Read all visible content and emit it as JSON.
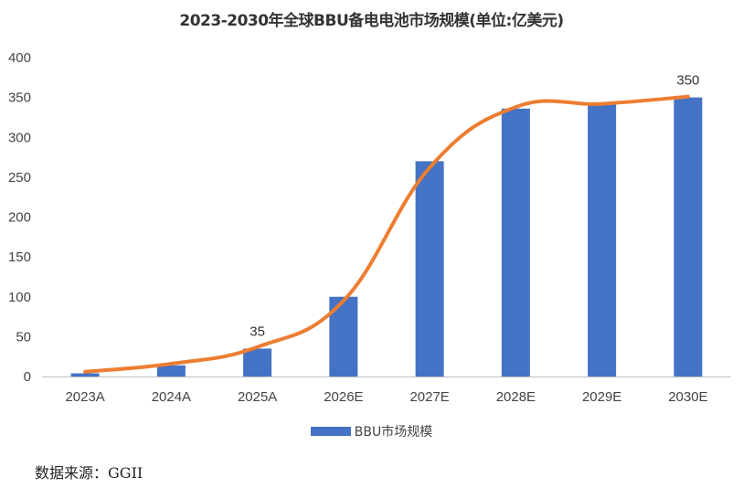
{
  "chart_data": {
    "type": "bar",
    "title": "2023-2030年全球BBU备电电池市场规模(单位:亿美元)",
    "categories": [
      "2023A",
      "2024A",
      "2025A",
      "2026E",
      "2027E",
      "2028E",
      "2029E",
      "2030E"
    ],
    "series": [
      {
        "name": "BBU市场规模",
        "values": [
          4,
          14,
          35,
          100,
          270,
          336,
          341,
          350
        ]
      }
    ],
    "trend_line": [
      6,
      16,
      37,
      95,
      262,
      338,
      342,
      351
    ],
    "data_labels": {
      "2025A": "35",
      "2030E": "350"
    },
    "yticks": [
      0,
      50,
      100,
      150,
      200,
      250,
      300,
      350,
      400
    ],
    "ylim": [
      0,
      400
    ],
    "xlabel": "",
    "ylabel": "",
    "grid": false,
    "legend": "bottom-center",
    "colors": {
      "bar": "#4472c4",
      "line": "#ed7d31"
    }
  },
  "source": "数据来源：GGII"
}
